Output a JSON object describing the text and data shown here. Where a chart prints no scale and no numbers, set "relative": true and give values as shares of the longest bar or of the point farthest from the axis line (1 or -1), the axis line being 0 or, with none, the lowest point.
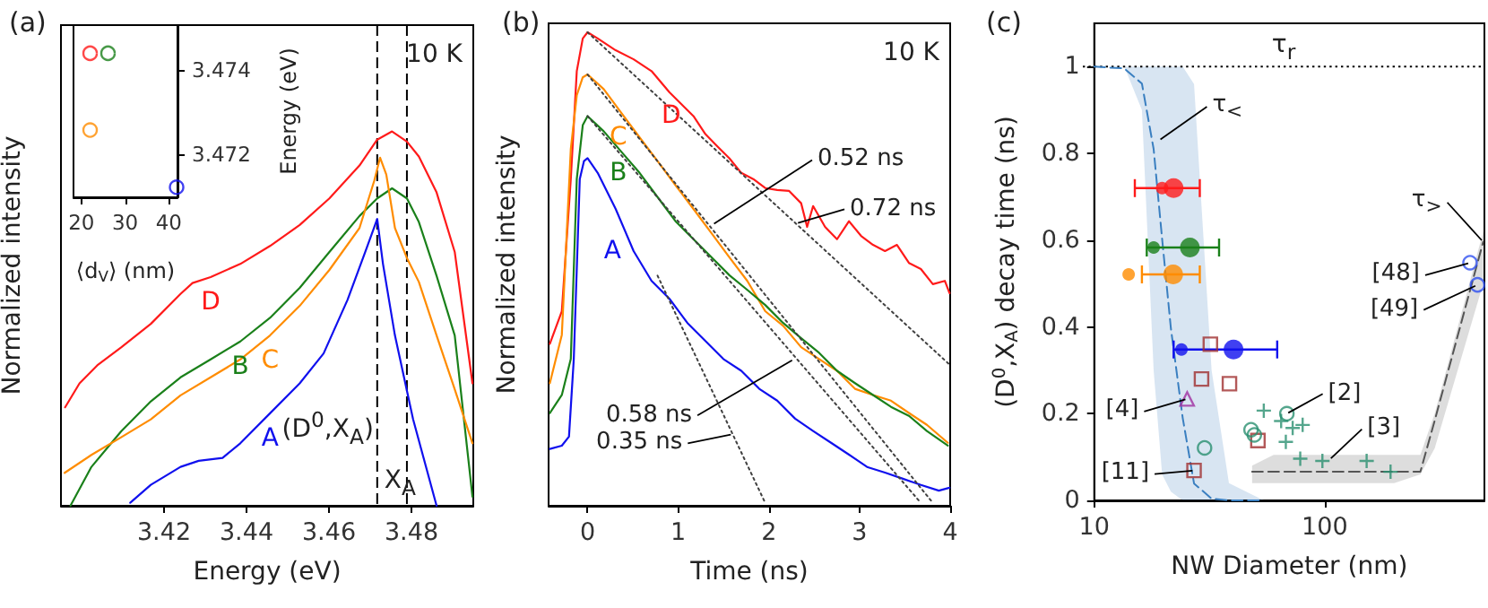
{
  "chart_data": [
    {
      "type": "line",
      "title": "(a)",
      "xlabel": "Energy (eV)",
      "ylabel": "Normalized intensity",
      "relative": true,
      "xlim": [
        3.395,
        3.495
      ],
      "xticks": [
        3.42,
        3.44,
        3.46,
        3.48
      ],
      "marker": "none",
      "line_style": "solid",
      "annotations": [
        "10 K"
      ],
      "ref_lines": [
        {
          "axis": "x",
          "value": 3.4717,
          "label": "(D$^{0}$,X$_{A}$)",
          "color": "#000000",
          "line_style": "dashed"
        },
        {
          "axis": "x",
          "value": 3.4789,
          "label": "X$_{A}$",
          "color": "#000000",
          "line_style": "dashed"
        }
      ],
      "series": [
        {
          "name": "D",
          "color": "#ff1a1a",
          "x": [
            3.396,
            3.3995,
            3.4038,
            3.4096,
            3.4168,
            3.424,
            3.4269,
            3.4313,
            3.4385,
            3.4457,
            3.4529,
            3.4601,
            3.4674,
            3.4717,
            3.4753,
            3.4789,
            3.4818,
            3.4861,
            3.4905,
            3.4948
          ],
          "values": [
            0.263,
            0.327,
            0.375,
            0.423,
            0.486,
            0.566,
            0.595,
            0.611,
            0.646,
            0.694,
            0.75,
            0.821,
            0.909,
            0.978,
            1,
            0.973,
            0.933,
            0.837,
            0.678,
            0.327
          ]
        },
        {
          "name": "B",
          "color": "#1a801a",
          "x": [
            3.3973,
            3.4024,
            3.4096,
            3.4168,
            3.424,
            3.4313,
            3.4385,
            3.4457,
            3.4529,
            3.4601,
            3.4674,
            3.4717,
            3.4753,
            3.4789,
            3.4818,
            3.4861,
            3.4905,
            3.4948
          ],
          "values": [
            0,
            0.104,
            0.199,
            0.279,
            0.343,
            0.391,
            0.439,
            0.502,
            0.582,
            0.678,
            0.774,
            0.821,
            0.848,
            0.821,
            0.758,
            0.614,
            0.455,
            0.024
          ]
        },
        {
          "name": "C",
          "color": "#ff8c00",
          "x": [
            3.3959,
            3.4024,
            3.4096,
            3.4168,
            3.424,
            3.4313,
            3.4385,
            3.4457,
            3.4529,
            3.4601,
            3.4674,
            3.471,
            3.4724,
            3.4739,
            3.476,
            3.4789,
            3.4818,
            3.4861,
            3.4905,
            3.4948
          ],
          "values": [
            0.088,
            0.136,
            0.183,
            0.231,
            0.295,
            0.343,
            0.391,
            0.455,
            0.534,
            0.63,
            0.742,
            0.869,
            0.93,
            0.885,
            0.742,
            0.662,
            0.598,
            0.455,
            0.311,
            0.167
          ]
        },
        {
          "name": "A",
          "color": "#1010ee",
          "x": [
            3.4118,
            3.4168,
            3.424,
            3.4284,
            3.4342,
            3.4385,
            3.4457,
            3.4529,
            3.4587,
            3.4645,
            3.4688,
            3.4717,
            3.4731,
            3.476,
            3.4804,
            3.4861
          ],
          "values": [
            0.008,
            0.056,
            0.104,
            0.12,
            0.128,
            0.167,
            0.247,
            0.327,
            0.407,
            0.55,
            0.678,
            0.766,
            0.646,
            0.455,
            0.231,
            0
          ]
        }
      ]
    },
    {
      "type": "scatter",
      "x": [
        22.0,
        26.1,
        22.0,
        41.8
      ],
      "values": [
        3.4744,
        3.4744,
        3.47257,
        3.47121
      ],
      "colors": [
        "#ff1a1a",
        "#1a801a",
        "#ff8c00",
        "#1010ee"
      ],
      "marker": "circle",
      "xlim": [
        18.2,
        42
      ],
      "ylim": [
        3.47097,
        3.47507
      ],
      "xticks": [
        20,
        30,
        40
      ],
      "yticks": [
        3.472,
        3.474
      ],
      "xlabel": "⟨d$_{V}$⟩ (nm)",
      "ylabel": "Energy (eV)"
    },
    {
      "type": "line",
      "title": "(b)",
      "xlabel": "Time (ns)",
      "ylabel": "Normalized intensity",
      "relative": true,
      "xlim": [
        -0.43,
        4
      ],
      "xticks": [
        0,
        1,
        2,
        3,
        4
      ],
      "marker": "none",
      "line_style": "solid",
      "annotations": [
        "10 K",
        {
          "text": "0.52 ns",
          "x": 1.35,
          "y": 0.59
        },
        {
          "text": "0.72 ns",
          "x": 2.3,
          "y": 0.596
        },
        {
          "text": "0.58 ns",
          "x": 2.3,
          "y": 0.312
        },
        {
          "text": "0.35 ns",
          "x": 1.6,
          "y": 0.151
        }
      ],
      "series": [
        {
          "name": "D",
          "color": "#ff1a1a",
          "x": [
            -0.416,
            -0.284,
            -0.185,
            -0.119,
            -0.053,
            0,
            0.112,
            0.31,
            0.508,
            0.706,
            0.904,
            1.036,
            1.168,
            1.3,
            1.432,
            1.564,
            1.696,
            1.828,
            1.96,
            2.092,
            2.224,
            2.356,
            2.422,
            2.488,
            2.62,
            2.752,
            2.884,
            3.017,
            3.149,
            3.281,
            3.413,
            3.545,
            3.677,
            3.809,
            3.941,
            3.993
          ],
          "values": [
            0.342,
            0.411,
            0.69,
            0.918,
            0.987,
            1,
            0.987,
            0.962,
            0.943,
            0.918,
            0.873,
            0.848,
            0.823,
            0.785,
            0.759,
            0.734,
            0.703,
            0.69,
            0.671,
            0.667,
            0.665,
            0.639,
            0.589,
            0.633,
            0.589,
            0.563,
            0.601,
            0.57,
            0.551,
            0.538,
            0.551,
            0.513,
            0.5,
            0.468,
            0.475,
            0.449
          ]
        },
        {
          "name": "C",
          "color": "#ff8c00",
          "x": [
            -0.416,
            -0.284,
            -0.185,
            -0.119,
            -0.053,
            0,
            0.178,
            0.376,
            0.574,
            0.772,
            0.97,
            1.168,
            1.366,
            1.564,
            1.762,
            1.96,
            2.158,
            2.356,
            2.554,
            2.752,
            2.95,
            3.149,
            3.347,
            3.545,
            3.743,
            3.974
          ],
          "values": [
            0.259,
            0.361,
            0.753,
            0.867,
            0.905,
            0.911,
            0.88,
            0.829,
            0.778,
            0.728,
            0.677,
            0.627,
            0.576,
            0.525,
            0.475,
            0.411,
            0.38,
            0.335,
            0.31,
            0.285,
            0.247,
            0.234,
            0.222,
            0.196,
            0.171,
            0.133
          ]
        },
        {
          "name": "B",
          "color": "#1a801a",
          "x": [
            -0.416,
            -0.284,
            -0.185,
            -0.119,
            -0.053,
            0,
            0.178,
            0.376,
            0.574,
            0.772,
            0.97,
            1.168,
            1.366,
            1.564,
            1.762,
            1.96,
            2.158,
            2.356,
            2.554,
            2.752,
            2.95,
            3.149,
            3.347,
            3.545,
            3.743,
            3.974
          ],
          "values": [
            0.196,
            0.234,
            0.31,
            0.69,
            0.804,
            0.823,
            0.791,
            0.747,
            0.703,
            0.652,
            0.601,
            0.563,
            0.525,
            0.487,
            0.456,
            0.424,
            0.386,
            0.354,
            0.323,
            0.285,
            0.259,
            0.234,
            0.209,
            0.19,
            0.158,
            0.127
          ]
        },
        {
          "name": "A",
          "color": "#1010ee",
          "x": [
            -0.416,
            -0.284,
            -0.205,
            -0.152,
            -0.086,
            -0.04,
            0,
            0.112,
            0.31,
            0.508,
            0.706,
            0.904,
            1.102,
            1.3,
            1.498,
            1.696,
            1.894,
            2.092,
            2.29,
            2.488,
            2.686,
            2.884,
            3.083,
            3.281,
            3.479,
            3.677,
            3.875,
            3.993
          ],
          "values": [
            0.12,
            0.127,
            0.146,
            0.31,
            0.69,
            0.728,
            0.734,
            0.703,
            0.627,
            0.538,
            0.475,
            0.437,
            0.386,
            0.348,
            0.31,
            0.285,
            0.247,
            0.222,
            0.184,
            0.158,
            0.133,
            0.108,
            0.082,
            0.07,
            0.057,
            0.044,
            0.032,
            0.038
          ]
        },
        {
          "color": "#404040",
          "line_style": "dotted",
          "x": [
            0,
            4
          ],
          "values": [
            1,
            0.297
          ]
        },
        {
          "color": "#404040",
          "line_style": "dotted",
          "x": [
            0,
            3.809
          ],
          "values": [
            0.911,
            0.006
          ]
        },
        {
          "color": "#404040",
          "line_style": "dotted",
          "x": [
            0,
            3.677
          ],
          "values": [
            0.823,
            0.006
          ]
        },
        {
          "color": "#404040",
          "line_style": "dotted",
          "x": [
            0.772,
            1.96
          ],
          "values": [
            0.486,
            0.006
          ]
        }
      ]
    },
    {
      "type": "scatter",
      "title": "(c)",
      "xlabel": "NW Diameter (nm)",
      "ylabel": "(D$^{0}$,X$_{A}$) decay time (ns)",
      "log": "x",
      "xlim": [
        10,
        493
      ],
      "ylim": [
        0,
        1.1
      ],
      "xticks": [
        10,
        100
      ],
      "yticks": [
        0,
        0.2,
        0.4,
        0.6,
        0.8,
        1
      ],
      "ref_lines": [
        {
          "axis": "y",
          "value": 1,
          "label": "τ$_{r}$",
          "color": "#000000",
          "line_style": "dotted"
        }
      ],
      "annotations": [
        {
          "text": "τ$_{<}$",
          "x": 19.0,
          "y": 0.829
        },
        {
          "text": "τ$_{>}$",
          "x": 487,
          "y": 0.596
        },
        {
          "text": "[48]",
          "x": 427,
          "y": 0.548
        },
        {
          "text": "[49]",
          "x": 460,
          "y": 0.497
        },
        {
          "text": "[2]",
          "x": 68.5,
          "y": 0.2
        },
        {
          "text": "[3]",
          "x": 105,
          "y": 0.094
        },
        {
          "text": "[4]",
          "x": 25.3,
          "y": 0.234
        },
        {
          "text": "[11]",
          "x": 27.1,
          "y": 0.069
        }
      ],
      "series": [
        {
          "type": "line",
          "color": "#3a7fc0",
          "line_style": "dashed",
          "marker": "none",
          "x": [
            10,
            13.5,
            16.1,
            18.1,
            19.7,
            21.5,
            24.2,
            27.1,
            32.3,
            38.4,
            54.4
          ],
          "values": [
            1,
            0.996,
            0.961,
            0.81,
            0.603,
            0.397,
            0.19,
            0.039,
            0.004,
            0,
            0
          ],
          "lower": [
            1,
            1,
            0.9,
            0.3,
            0.06,
            0.02,
            0,
            0,
            0,
            0,
            0
          ],
          "upper": [
            1,
            1,
            1,
            1,
            1,
            1,
            1,
            0.96,
            0.3,
            0.04,
            0
          ]
        },
        {
          "type": "line",
          "color": "#555555",
          "line_style": "dashed",
          "marker": "none",
          "x": [
            48.4,
            60,
            200,
            260,
            300,
            487
          ],
          "values": [
            0.066,
            0.066,
            0.066,
            0.066,
            0.184,
            0.596
          ],
          "lower": [
            0.04,
            0.04,
            0.04,
            0.06,
            0.12,
            0.5
          ],
          "upper": [
            0.08,
            0.105,
            0.105,
            0.105,
            0.2,
            0.62
          ]
        },
        {
          "marker": "circle",
          "x": [
            19.7,
            18.1,
            14.1,
            23.9
          ],
          "values": [
            0.72,
            0.583,
            0.521,
            0.348
          ],
          "colors": [
            "#ff1a1a",
            "#1a801a",
            "#ff8c00",
            "#1010ee"
          ],
          "xerrors": [
            null,
            null,
            null,
            null
          ]
        },
        {
          "marker": "circle",
          "x": [
            22.1,
            26.0,
            22.0,
            40.2
          ],
          "values": [
            0.72,
            0.583,
            0.521,
            0.348
          ],
          "colors": [
            "#ff1a1a",
            "#1a801a",
            "#ff8c00",
            "#1010ee"
          ],
          "xerrors": [
            [
              15.0,
              28.7
            ],
            [
              16.9,
              34.8
            ],
            [
              16.1,
              28.7
            ],
            [
              22.1,
              62.2
            ]
          ]
        },
        {
          "marker": "square",
          "color": "#a03030",
          "x": [
            31.9,
            29.2,
            38.6,
            51.3,
            27.1
          ],
          "values": [
            0.36,
            0.28,
            0.269,
            0.138,
            0.069
          ]
        },
        {
          "marker": "triangle",
          "color": "#a030a0",
          "x": [
            25.3
          ],
          "values": [
            0.234
          ]
        },
        {
          "marker": "circle",
          "color": "#2a9070",
          "x": [
            68.5,
            47.9,
            49.5,
            30.1
          ],
          "values": [
            0.2,
            0.163,
            0.151,
            0.121
          ]
        },
        {
          "marker": "cross",
          "color": "#2a9070",
          "x": [
            54.4,
            64.7,
            72.6,
            80.2,
            67.8,
            78.3,
            97.7,
            152,
            193
          ],
          "values": [
            0.207,
            0.183,
            0.167,
            0.174,
            0.135,
            0.096,
            0.091,
            0.091,
            0.066
          ]
        },
        {
          "marker": "circle",
          "color": "#3050f0",
          "x": [
            427,
            460
          ],
          "values": [
            0.548,
            0.497
          ]
        }
      ]
    }
  ]
}
